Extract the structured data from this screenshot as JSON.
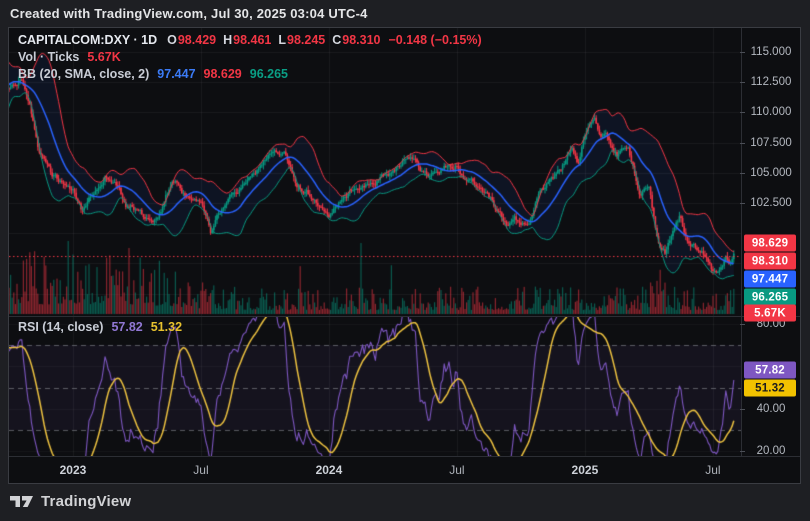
{
  "header": {
    "attribution": "Created with TradingView.com, Jul 30, 2025 03:04 UTC-4"
  },
  "legend": {
    "title": "CAPITALCOM:DXY · 1D",
    "ohlc": [
      {
        "label": "O",
        "value": "98.429"
      },
      {
        "label": "H",
        "value": "98.461"
      },
      {
        "label": "L",
        "value": "98.245"
      },
      {
        "label": "C",
        "value": "98.310"
      }
    ],
    "change": "−0.148 (−0.15%)",
    "volume": {
      "label": "Vol · Ticks",
      "value": "5.67K"
    },
    "bb": {
      "label": "BB (20, SMA, close, 2)",
      "basis": "97.447",
      "upper": "98.629",
      "lower": "96.265"
    }
  },
  "rsi_legend": {
    "label": "RSI (14, close)",
    "value": "57.82",
    "ma_value": "51.32"
  },
  "price_scale": {
    "ticks": [
      {
        "label": "115.000",
        "value": 115.0
      },
      {
        "label": "112.500",
        "value": 112.5
      },
      {
        "label": "110.000",
        "value": 110.0
      },
      {
        "label": "107.500",
        "value": 107.5
      },
      {
        "label": "105.000",
        "value": 105.0
      },
      {
        "label": "102.500",
        "value": 102.5
      }
    ],
    "badges": [
      {
        "label": "98.629",
        "bg": "#f23645",
        "fg": "#ffffff"
      },
      {
        "label": "98.310",
        "bg": "#f23645",
        "fg": "#ffffff"
      },
      {
        "label": "97.447",
        "bg": "#2962ff",
        "fg": "#ffffff"
      },
      {
        "label": "96.265",
        "bg": "#089981",
        "fg": "#ffffff"
      },
      {
        "label": "5.67K",
        "bg": "#f23645",
        "fg": "#ffffff"
      }
    ]
  },
  "rsi_scale": {
    "ticks": [
      {
        "label": "80.00",
        "value": 80
      },
      {
        "label": "40.00",
        "value": 40
      },
      {
        "label": "20.00",
        "value": 20
      }
    ],
    "badges": [
      {
        "label": "57.82",
        "bg": "#7e57c2",
        "fg": "#ffffff"
      },
      {
        "label": "51.32",
        "bg": "#f2c200",
        "fg": "#1b1b1d"
      }
    ]
  },
  "time_axis": {
    "labels": [
      {
        "label": "2023",
        "m": 3,
        "bold": true
      },
      {
        "label": "Jul",
        "m": 9,
        "bold": false
      },
      {
        "label": "2024",
        "m": 15,
        "bold": true
      },
      {
        "label": "Jul",
        "m": 21,
        "bold": false
      },
      {
        "label": "2025",
        "m": 27,
        "bold": true
      },
      {
        "label": "Jul",
        "m": 33,
        "bold": false
      }
    ]
  },
  "footer": {
    "brand": "TradingView"
  },
  "colors": {
    "up": "#089981",
    "down": "#f23645",
    "bb_upper": "#f23645",
    "bb_basis": "#2962ff",
    "bb_lower": "#089981",
    "bb_fill": "rgba(41,98,255,0.08)",
    "rsi_line": "#7e57c2",
    "rsi_ma": "#edc240",
    "rsi_band_fill": "rgba(126,87,194,0.08)",
    "rsi_dashed": "rgba(150,153,161,0.55)",
    "last_price_line": "#f23645",
    "grid": "rgba(255,255,255,0.055)",
    "vol_up": "rgba(8,153,129,0.55)",
    "vol_down": "rgba(242,54,69,0.55)"
  },
  "chart_data": {
    "type": "candlestick",
    "symbol": "CAPITALCOM:DXY",
    "interval": "1D",
    "title": "US Dollar Index, daily candles with Bollinger Bands (20, SMA, close, 2), tick volume and RSI (14, close)",
    "x_range": [
      "Oct 2022",
      "Jul 30, 2025"
    ],
    "price_axis": {
      "min": 95.0,
      "max": 115.5,
      "tick_step": 2.5
    },
    "last_bar": {
      "open": 98.429,
      "high": 98.461,
      "low": 98.245,
      "close": 98.31,
      "change": -0.148,
      "change_pct": -0.15,
      "volume": "5.67K"
    },
    "bollinger": {
      "length": 20,
      "source": "close",
      "mult": 2,
      "basis": 97.447,
      "upper": 98.629,
      "lower": 96.265
    },
    "rsi": {
      "length": 14,
      "source": "close",
      "last": 57.82,
      "ma_last": 51.32,
      "levels": [
        70,
        50,
        30
      ],
      "axis_ticks": [
        80,
        60,
        40,
        20
      ]
    },
    "price_keypoints_months_from_oct2022": [
      [
        -1.5,
        109.6
      ],
      [
        -0.9,
        113.6
      ],
      [
        -0.4,
        111.8
      ],
      [
        0,
        112.4
      ],
      [
        0.55,
        113.2
      ],
      [
        1,
        110.9
      ],
      [
        1.35,
        106.9
      ],
      [
        2,
        104.7
      ],
      [
        2.5,
        103.9
      ],
      [
        3,
        103.4
      ],
      [
        3.4,
        101.9
      ],
      [
        4,
        103.6
      ],
      [
        4.55,
        104.9
      ],
      [
        5,
        104.2
      ],
      [
        5.5,
        102.4
      ],
      [
        6,
        102.2
      ],
      [
        6.5,
        101.4
      ],
      [
        7,
        101.7
      ],
      [
        7.6,
        104.3
      ],
      [
        8,
        103.9
      ],
      [
        8.5,
        102.5
      ],
      [
        9,
        102.9
      ],
      [
        9.45,
        99.9
      ],
      [
        10,
        101.9
      ],
      [
        10.5,
        103.3
      ],
      [
        11,
        104.2
      ],
      [
        11.5,
        105.5
      ],
      [
        12,
        106.2
      ],
      [
        12.25,
        106.9
      ],
      [
        13,
        106.5
      ],
      [
        13.5,
        103.9
      ],
      [
        14,
        103.4
      ],
      [
        14.5,
        102.4
      ],
      [
        15,
        101.4
      ],
      [
        15.5,
        103.0
      ],
      [
        16,
        103.6
      ],
      [
        16.5,
        104.2
      ],
      [
        17,
        103.9
      ],
      [
        17.5,
        104.5
      ],
      [
        18,
        104.6
      ],
      [
        18.5,
        106.1
      ],
      [
        19,
        105.6
      ],
      [
        19.5,
        104.5
      ],
      [
        20,
        105.1
      ],
      [
        20.5,
        105.8
      ],
      [
        21,
        105.8
      ],
      [
        21.5,
        104.2
      ],
      [
        22,
        104.1
      ],
      [
        22.5,
        102.8
      ],
      [
        23,
        101.7
      ],
      [
        23.35,
        100.7
      ],
      [
        23.7,
        101.3
      ],
      [
        24,
        100.9
      ],
      [
        24.35,
        100.4
      ],
      [
        25,
        103.8
      ],
      [
        25.5,
        104.5
      ],
      [
        26,
        105.9
      ],
      [
        26.35,
        107.4
      ],
      [
        26.7,
        106.0
      ],
      [
        27,
        108.4
      ],
      [
        27.45,
        109.8
      ],
      [
        27.8,
        107.9
      ],
      [
        28,
        108.3
      ],
      [
        28.5,
        106.6
      ],
      [
        29,
        107.2
      ],
      [
        29.55,
        103.8
      ],
      [
        30,
        104.1
      ],
      [
        30.4,
        99.6
      ],
      [
        30.75,
        98.6
      ],
      [
        31,
        99.8
      ],
      [
        31.45,
        101.3
      ],
      [
        31.8,
        99.3
      ],
      [
        32,
        99.2
      ],
      [
        32.5,
        98.7
      ],
      [
        33,
        96.9
      ],
      [
        33.25,
        96.5
      ],
      [
        33.6,
        98.0
      ],
      [
        33.8,
        97.4
      ],
      [
        34,
        98.31
      ]
    ]
  }
}
